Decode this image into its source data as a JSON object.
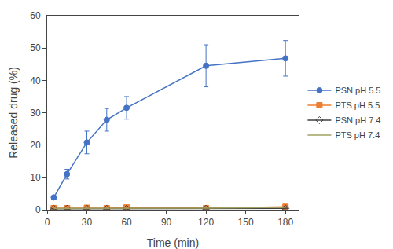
{
  "chart_data": {
    "type": "line",
    "xlabel": "Time (min)",
    "ylabel": "Released drug (%)",
    "xlim": [
      0,
      190
    ],
    "ylim": [
      0,
      60
    ],
    "xticks": [
      0,
      30,
      60,
      90,
      120,
      150,
      180
    ],
    "yticks": [
      0,
      10,
      20,
      30,
      40,
      50,
      60
    ],
    "grid": false,
    "legend": "right",
    "series": [
      {
        "name": "PSN pH 5.5",
        "color": "#4472C4",
        "marker": "circle",
        "x": [
          5,
          15,
          30,
          45,
          60,
          120,
          180
        ],
        "values": [
          3.8,
          11.0,
          20.8,
          27.8,
          31.5,
          44.5,
          46.8
        ],
        "yerr": [
          0.5,
          1.5,
          3.5,
          3.5,
          3.5,
          6.5,
          5.5
        ]
      },
      {
        "name": "PTS pH 5.5",
        "color": "#ED7D31",
        "marker": "square",
        "x": [
          5,
          15,
          30,
          45,
          60,
          120,
          180
        ],
        "values": [
          0.5,
          0.5,
          0.6,
          0.5,
          0.7,
          0.5,
          0.9
        ],
        "yerr": [
          0.15,
          0.1,
          0.1,
          0.15,
          0.2,
          0.1,
          0.2
        ]
      },
      {
        "name": "PSN pH 7.4",
        "color": "#404040",
        "marker": "diamond-open",
        "x": [
          5,
          15,
          30,
          45,
          60,
          120,
          180
        ],
        "values": [
          0.3,
          0.3,
          0.3,
          0.3,
          0.3,
          0.3,
          0.4
        ],
        "yerr": [
          0.05,
          0.05,
          0.05,
          0.05,
          0.05,
          0.05,
          0.1
        ]
      },
      {
        "name": "PTS pH 7.4",
        "color": "#A0A060",
        "marker": "none",
        "x": [
          5,
          15,
          30,
          45,
          60,
          120,
          180
        ],
        "values": [
          0.4,
          0.4,
          0.4,
          0.4,
          0.5,
          0.5,
          0.7
        ]
      }
    ]
  }
}
